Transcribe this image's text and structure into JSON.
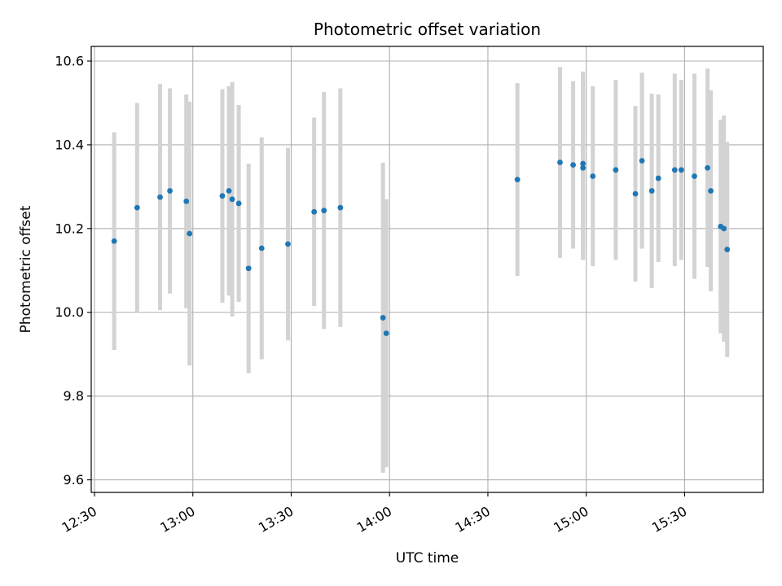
{
  "chart_data": {
    "type": "scatter",
    "title": "Photometric offset variation",
    "xlabel": "UTC time",
    "ylabel": "Photometric offset",
    "x_unit": "minutes",
    "xlim": [
      "12:29",
      "15:54"
    ],
    "ylim": [
      9.57,
      10.635
    ],
    "x_ticks": [
      "12:30",
      "13:00",
      "13:30",
      "14:00",
      "14:30",
      "15:00",
      "15:30"
    ],
    "y_ticks": [
      "9.6",
      "9.8",
      "10.0",
      "10.2",
      "10.4",
      "10.6"
    ],
    "grid": true,
    "colors": {
      "point": "#1f77b4",
      "errorbar": "#d3d3d3",
      "grid": "#b0b0b0"
    },
    "series": [
      {
        "points": [
          {
            "x": "12:36",
            "y": 10.17,
            "err": 0.26
          },
          {
            "x": "12:43",
            "y": 10.25,
            "err": 0.25
          },
          {
            "x": "12:50",
            "y": 10.275,
            "err": 0.27
          },
          {
            "x": "12:53",
            "y": 10.29,
            "err": 0.245
          },
          {
            "x": "12:58",
            "y": 10.265,
            "err": 0.255
          },
          {
            "x": "12:59",
            "y": 10.188,
            "err": 0.315
          },
          {
            "x": "13:09",
            "y": 10.278,
            "err": 0.255
          },
          {
            "x": "13:11",
            "y": 10.29,
            "err": 0.25
          },
          {
            "x": "13:12",
            "y": 10.27,
            "err": 0.28
          },
          {
            "x": "13:14",
            "y": 10.26,
            "err": 0.235
          },
          {
            "x": "13:17",
            "y": 10.105,
            "err": 0.25
          },
          {
            "x": "13:21",
            "y": 10.153,
            "err": 0.265
          },
          {
            "x": "13:29",
            "y": 10.163,
            "err": 0.23
          },
          {
            "x": "13:37",
            "y": 10.24,
            "err": 0.225
          },
          {
            "x": "13:40",
            "y": 10.243,
            "err": 0.283
          },
          {
            "x": "13:45",
            "y": 10.25,
            "err": 0.285
          },
          {
            "x": "13:58",
            "y": 9.987,
            "err": 0.37
          },
          {
            "x": "13:59",
            "y": 9.95,
            "err": 0.32
          },
          {
            "x": "14:39",
            "y": 10.317,
            "err": 0.23
          },
          {
            "x": "14:52",
            "y": 10.358,
            "err": 0.228
          },
          {
            "x": "14:56",
            "y": 10.352,
            "err": 0.2
          },
          {
            "x": "14:59",
            "y": 10.345,
            "err": 0.22
          },
          {
            "x": "14:59",
            "y": 10.355,
            "err": 0.22
          },
          {
            "x": "15:02",
            "y": 10.325,
            "err": 0.215
          },
          {
            "x": "15:09",
            "y": 10.34,
            "err": 0.215
          },
          {
            "x": "15:15",
            "y": 10.283,
            "err": 0.21
          },
          {
            "x": "15:17",
            "y": 10.362,
            "err": 0.21
          },
          {
            "x": "15:20",
            "y": 10.29,
            "err": 0.232
          },
          {
            "x": "15:22",
            "y": 10.32,
            "err": 0.2
          },
          {
            "x": "15:27",
            "y": 10.34,
            "err": 0.23
          },
          {
            "x": "15:29",
            "y": 10.34,
            "err": 0.215
          },
          {
            "x": "15:33",
            "y": 10.325,
            "err": 0.245
          },
          {
            "x": "15:37",
            "y": 10.345,
            "err": 0.237
          },
          {
            "x": "15:38",
            "y": 10.29,
            "err": 0.24
          },
          {
            "x": "15:41",
            "y": 10.205,
            "err": 0.255
          },
          {
            "x": "15:42",
            "y": 10.2,
            "err": 0.27
          },
          {
            "x": "15:43",
            "y": 10.15,
            "err": 0.257
          }
        ]
      }
    ]
  }
}
